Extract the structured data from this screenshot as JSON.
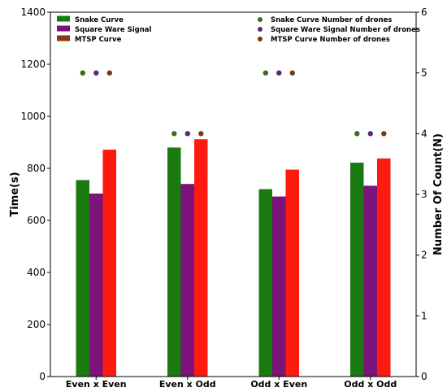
{
  "chart_data": {
    "type": "bar",
    "title": "",
    "categories": [
      "Even x Even",
      "Even x Odd",
      "Odd x Even",
      "Odd x Odd"
    ],
    "ylabel": "Time(s)",
    "y2label": "Number Of Count(N)",
    "ylim": [
      0,
      1400
    ],
    "y2lim": [
      0,
      6
    ],
    "yticks": [
      "0",
      "200",
      "400",
      "600",
      "800",
      "1000",
      "1200",
      "1400"
    ],
    "y2ticks": [
      "0",
      "1",
      "2",
      "3",
      "4",
      "5",
      "6"
    ],
    "series": [
      {
        "name": "Snake Curve",
        "color": "#1a7a10",
        "values": [
          755,
          880,
          720,
          822
        ]
      },
      {
        "name": "Square Ware Signal",
        "color": "#7b1378",
        "values": [
          703,
          740,
          692,
          733
        ]
      },
      {
        "name": "MTSP Curve",
        "color": "#ff1a10",
        "legend_color": "#8b3a0f",
        "values": [
          872,
          912,
          795,
          838
        ]
      }
    ],
    "scatter_series": [
      {
        "name": "Snake Curve Number of drones",
        "color": "#3a6b1a",
        "values": [
          5,
          4,
          5,
          4
        ]
      },
      {
        "name": "Square Ware Signal Number of drones",
        "color": "#5a2a7a",
        "values": [
          5,
          4,
          5,
          4
        ]
      },
      {
        "name": "MTSP Curve Number of drones",
        "color": "#7a3a10",
        "values": [
          5,
          4,
          5,
          4
        ]
      }
    ],
    "legend_left_position": "top-left",
    "legend_right_position": "top-right",
    "grid": false
  }
}
